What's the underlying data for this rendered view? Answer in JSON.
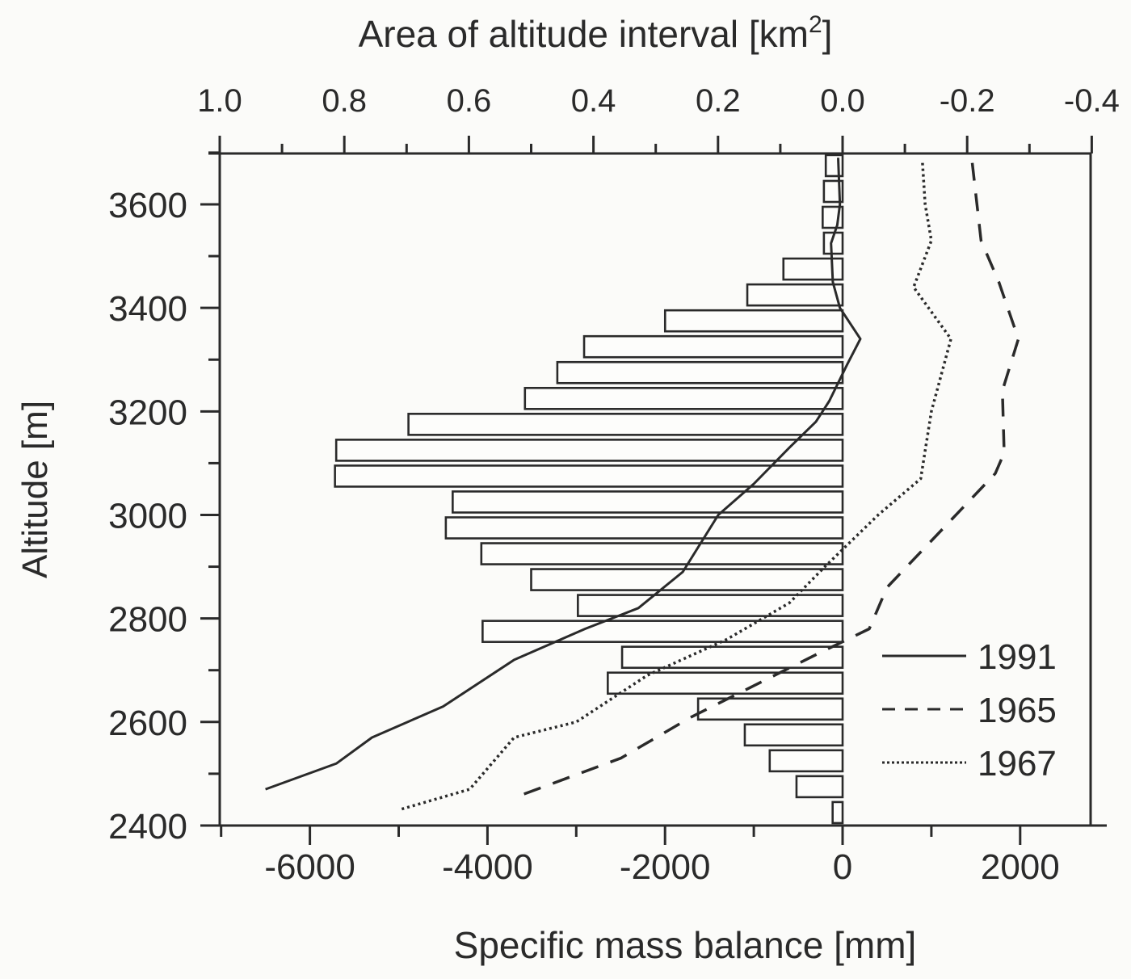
{
  "chart_data": {
    "type": "bar+line",
    "title": "",
    "top_axis": {
      "label": "Area of altitude interval [km",
      "label_sup": "2",
      "label_close": "]",
      "ticks": [
        "1.0",
        "0.8",
        "0.6",
        "0.4",
        "0.2",
        "0.0",
        "-0.2",
        "-0.4"
      ],
      "tick_values": [
        1.0,
        0.8,
        0.6,
        0.4,
        0.2,
        0.0,
        -0.2,
        -0.4
      ],
      "range": [
        1.0,
        -0.4
      ]
    },
    "bottom_axis": {
      "label": "Specific mass balance [mm]",
      "ticks": [
        "-6000",
        "-4000",
        "-2000",
        "0",
        "2000"
      ],
      "tick_values": [
        -6000,
        -4000,
        -2000,
        0,
        2000
      ],
      "range": [
        -7000,
        2800
      ]
    },
    "y_axis": {
      "label": "Altitude [m]",
      "ticks": [
        "3600",
        "3400",
        "3200",
        "3000",
        "2800",
        "2600",
        "2400"
      ],
      "tick_values": [
        3600,
        3400,
        3200,
        3000,
        2800,
        2600,
        2400
      ],
      "range": [
        2400,
        3700
      ]
    },
    "grid": false,
    "legend_position": "lower right, inside plot",
    "bars": {
      "name": "Area of altitude interval",
      "unit": "km2",
      "altitude_bins": [
        [
          3650,
          3700
        ],
        [
          3600,
          3650
        ],
        [
          3550,
          3600
        ],
        [
          3500,
          3550
        ],
        [
          3450,
          3500
        ],
        [
          3400,
          3450
        ],
        [
          3350,
          3400
        ],
        [
          3300,
          3350
        ],
        [
          3250,
          3300
        ],
        [
          3200,
          3250
        ],
        [
          3150,
          3200
        ],
        [
          3100,
          3150
        ],
        [
          3050,
          3100
        ],
        [
          3000,
          3050
        ],
        [
          2950,
          3000
        ],
        [
          2900,
          2950
        ],
        [
          2850,
          2900
        ],
        [
          2800,
          2850
        ],
        [
          2750,
          2800
        ],
        [
          2700,
          2750
        ],
        [
          2650,
          2700
        ],
        [
          2600,
          2650
        ],
        [
          2550,
          2600
        ],
        [
          2500,
          2550
        ],
        [
          2450,
          2500
        ],
        [
          2400,
          2450
        ]
      ],
      "values": [
        0.027,
        0.03,
        0.032,
        0.03,
        0.095,
        0.153,
        0.285,
        0.415,
        0.458,
        0.51,
        0.697,
        0.813,
        0.815,
        0.626,
        0.637,
        0.58,
        0.5,
        0.425,
        0.578,
        0.354,
        0.377,
        0.232,
        0.157,
        0.117,
        0.074,
        0.016
      ]
    },
    "series": [
      {
        "name": "1991",
        "style": "solid",
        "points": [
          [
            -50,
            3690
          ],
          [
            -30,
            3600
          ],
          [
            -60,
            3560
          ],
          [
            -130,
            3525
          ],
          [
            -110,
            3450
          ],
          [
            -30,
            3400
          ],
          [
            200,
            3340
          ],
          [
            50,
            3290
          ],
          [
            -150,
            3220
          ],
          [
            -300,
            3180
          ],
          [
            -600,
            3130
          ],
          [
            -1000,
            3060
          ],
          [
            -1400,
            3000
          ],
          [
            -1800,
            2890
          ],
          [
            -2300,
            2820
          ],
          [
            -2900,
            2780
          ],
          [
            -3700,
            2720
          ],
          [
            -4500,
            2630
          ],
          [
            -5300,
            2570
          ],
          [
            -5700,
            2520
          ],
          [
            -6500,
            2470
          ]
        ]
      },
      {
        "name": "1965",
        "style": "dashed",
        "points": [
          [
            1460,
            3680
          ],
          [
            1560,
            3530
          ],
          [
            1760,
            3450
          ],
          [
            1980,
            3340
          ],
          [
            1800,
            3240
          ],
          [
            1820,
            3120
          ],
          [
            1720,
            3080
          ],
          [
            1000,
            2950
          ],
          [
            500,
            2860
          ],
          [
            300,
            2780
          ],
          [
            -300,
            2730
          ],
          [
            -1000,
            2670
          ],
          [
            -1700,
            2610
          ],
          [
            -2500,
            2530
          ],
          [
            -3600,
            2460
          ]
        ]
      },
      {
        "name": "1967",
        "style": "dotted",
        "points": [
          [
            900,
            3680
          ],
          [
            930,
            3600
          ],
          [
            1000,
            3530
          ],
          [
            800,
            3440
          ],
          [
            1220,
            3340
          ],
          [
            1000,
            3200
          ],
          [
            880,
            3070
          ],
          [
            400,
            3000
          ],
          [
            -200,
            2900
          ],
          [
            -600,
            2830
          ],
          [
            -1300,
            2760
          ],
          [
            -2200,
            2690
          ],
          [
            -3000,
            2600
          ],
          [
            -3700,
            2570
          ],
          [
            -4200,
            2470
          ],
          [
            -5000,
            2430
          ]
        ]
      }
    ]
  },
  "legend": {
    "items": [
      {
        "label": "1991",
        "style": "solid"
      },
      {
        "label": "1965",
        "style": "dashed"
      },
      {
        "label": "1967",
        "style": "dotted"
      }
    ]
  }
}
